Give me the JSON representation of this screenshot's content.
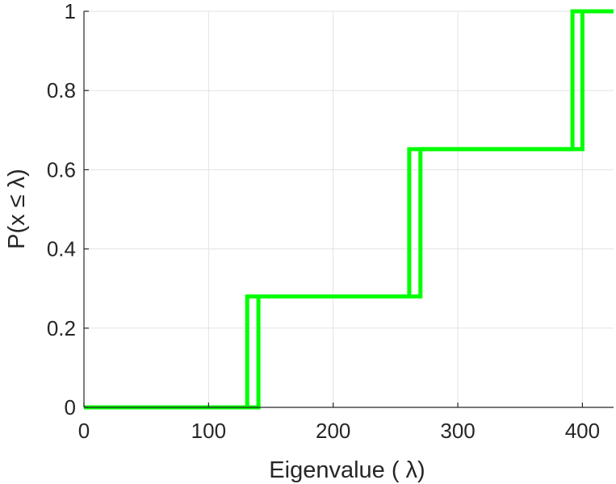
{
  "chart_data": {
    "type": "line",
    "title": "",
    "xlabel": "Eigenvalue (  λ)",
    "ylabel": "P(x ≤ λ)",
    "xlim": [
      0,
      425
    ],
    "ylim": [
      0,
      1
    ],
    "x_ticks": [
      0,
      100,
      200,
      300,
      400
    ],
    "y_ticks": [
      0,
      0.2,
      0.4,
      0.6,
      0.8,
      1
    ],
    "x_tick_labels": [
      "0",
      "100",
      "200",
      "300",
      "400"
    ],
    "y_tick_labels": [
      "0",
      "0.2",
      "0.4",
      "0.6",
      "0.8",
      "1"
    ],
    "grid": true,
    "series": [
      {
        "color": "#00ff00",
        "x": [
          0,
          131,
          131,
          261,
          261,
          392,
          392,
          425
        ],
        "y": [
          0,
          0,
          0.28,
          0.28,
          0.652,
          0.652,
          1,
          1
        ]
      },
      {
        "color": "#00ff00",
        "x": [
          0,
          140,
          140,
          270,
          270,
          400,
          400,
          425
        ],
        "y": [
          0,
          0,
          0.28,
          0.28,
          0.652,
          0.652,
          1,
          1
        ]
      }
    ]
  }
}
